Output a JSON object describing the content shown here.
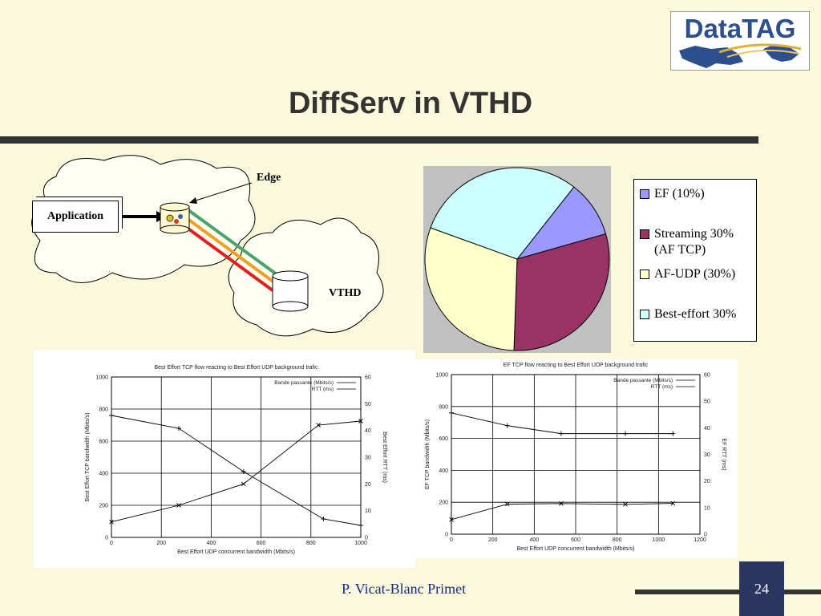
{
  "slide": {
    "title": "DiffServ in VTHD",
    "logo_text": "DataTAG",
    "author": "P. Vicat-Blanc Primet",
    "page_number": "24"
  },
  "diagram": {
    "application_label": "Application",
    "edge_label": "Edge",
    "vthd_label": "VTHD",
    "line_colors": [
      "#4aa36c",
      "#f0a020",
      "#e02020"
    ]
  },
  "chart_data": [
    {
      "type": "pie",
      "slices": [
        {
          "label": "EF (10%)",
          "value": 10,
          "color": "#9999ff"
        },
        {
          "label": "Streaming 30% (AF TCP)",
          "value": 30,
          "color": "#993366"
        },
        {
          "label": "AF-UDP (30%)",
          "value": 30,
          "color": "#ffffcc"
        },
        {
          "label": "Best-effort 30%",
          "value": 30,
          "color": "#ccffff"
        }
      ]
    },
    {
      "type": "line",
      "title": "Best Effort TCP flow reacting to Best Effort UDP background trafic",
      "xlabel": "Best Effort UDP concurrent bandwidth (Mbits/s)",
      "ylabel": "Best Effort TCP bandwidth (Mbits/s)",
      "y2label": "Best Effort RTT (ms)",
      "xlim": [
        0,
        1000
      ],
      "ylim": [
        0,
        1000
      ],
      "y2lim": [
        0,
        60
      ],
      "xticks": [
        "0",
        "200",
        "400",
        "600",
        "800",
        "1000"
      ],
      "yticks": [
        "0",
        "200",
        "400",
        "600",
        "800",
        "1000"
      ],
      "y2ticks": [
        "0",
        "10",
        "20",
        "30",
        "40",
        "50",
        "60"
      ],
      "series": [
        {
          "name": "Bande passante (Mbits/s)",
          "axis": "y",
          "marker": "+",
          "x": [
            0,
            270,
            530,
            850,
            1000
          ],
          "y": [
            760,
            680,
            410,
            115,
            75
          ]
        },
        {
          "name": "RTT (ms)",
          "axis": "y2",
          "marker": "x",
          "x": [
            0,
            270,
            530,
            830,
            1000
          ],
          "y": [
            5.8,
            12,
            20,
            42,
            43.5
          ]
        }
      ]
    },
    {
      "type": "line",
      "title": "EF TCP flow reacting to Best Effort UDP background trafic",
      "xlabel": "Best Effort UDP concurrent bandwidth (Mbits/s)",
      "ylabel": "EF TCP bandwidth (Mbits/s)",
      "y2label": "EF RTT (ms)",
      "xlim": [
        0,
        1200
      ],
      "ylim": [
        0,
        1000
      ],
      "y2lim": [
        0,
        60
      ],
      "xticks": [
        "0",
        "200",
        "400",
        "600",
        "800",
        "1000",
        "1200"
      ],
      "yticks": [
        "0",
        "200",
        "400",
        "600",
        "800",
        "1000"
      ],
      "y2ticks": [
        "0",
        "10",
        "20",
        "30",
        "40",
        "50",
        "60"
      ],
      "series": [
        {
          "name": "Bande passante (Mbits/s)",
          "axis": "y",
          "marker": "+",
          "x": [
            0,
            270,
            530,
            840,
            1070
          ],
          "y": [
            760,
            680,
            630,
            630,
            630
          ]
        },
        {
          "name": "RTT (ms)",
          "axis": "y2",
          "marker": "x",
          "x": [
            0,
            270,
            530,
            840,
            1070
          ],
          "y": [
            5.5,
            11.3,
            11.5,
            11.2,
            11.6
          ]
        }
      ]
    }
  ]
}
